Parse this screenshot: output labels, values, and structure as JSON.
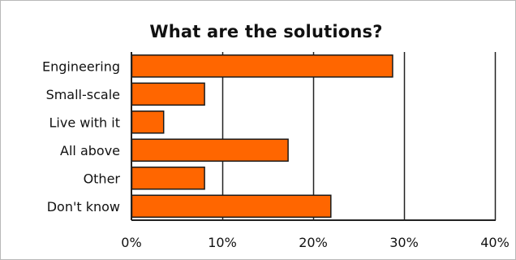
{
  "chart_data": {
    "type": "bar",
    "orientation": "horizontal",
    "title": "What are the solutions?",
    "categories": [
      "Engineering",
      "Small-scale",
      "Live with it",
      "All above",
      "Other",
      "Don't know"
    ],
    "values": [
      28.7,
      8.0,
      3.5,
      17.2,
      8.0,
      21.9
    ],
    "xlim": [
      0,
      40
    ],
    "x_ticks": [
      0,
      10,
      20,
      30,
      40
    ],
    "x_tick_labels": [
      "0%",
      "10%",
      "20%",
      "30%",
      "40%"
    ],
    "grid": "vertical",
    "legend": "none",
    "colors": {
      "bar_fill": "#ff6600",
      "bar_stroke": "#1a1a1a",
      "grid": "#222222",
      "axis": "#222222"
    }
  }
}
